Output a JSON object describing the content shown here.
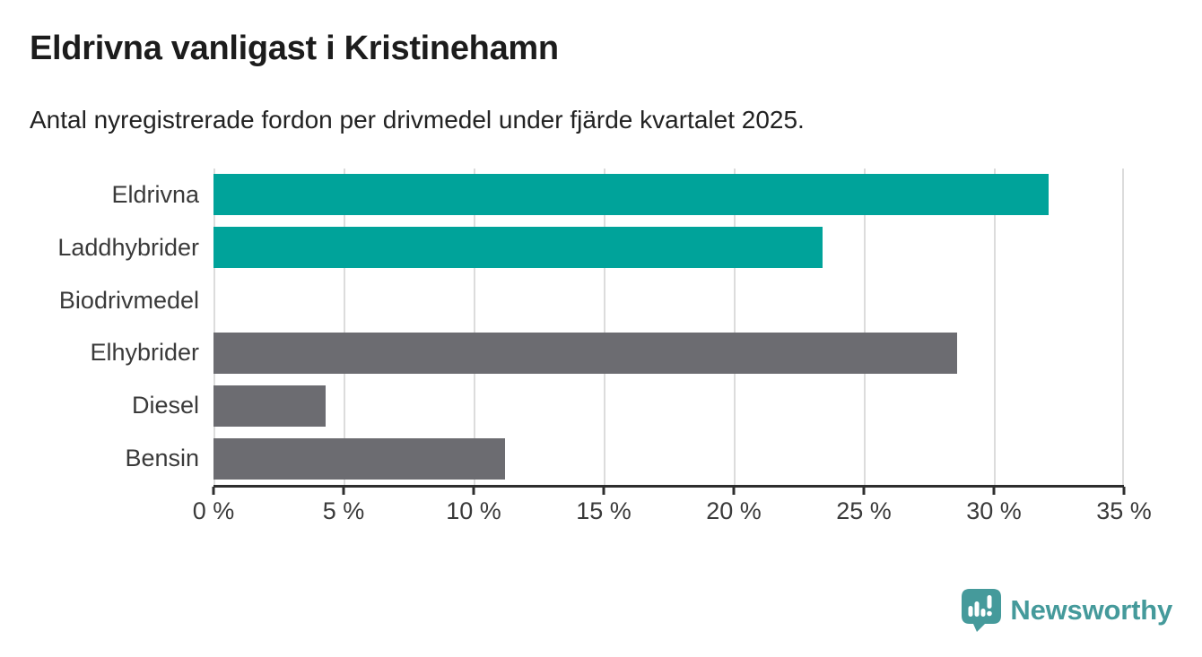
{
  "header": {
    "title": "Eldrivna vanligast i Kristinehamn",
    "subtitle": "Antal nyregistrerade fordon per drivmedel under fjärde kvartalet 2025."
  },
  "chart_data": {
    "type": "bar",
    "orientation": "horizontal",
    "title": "Eldrivna vanligast i Kristinehamn",
    "subtitle": "Antal nyregistrerade fordon per drivmedel under fjärde kvartalet 2025.",
    "categories": [
      "Eldrivna",
      "Laddhybrider",
      "Biodrivmedel",
      "Elhybrider",
      "Diesel",
      "Bensin"
    ],
    "values": [
      32.1,
      23.4,
      0,
      28.6,
      4.3,
      11.2
    ],
    "unit": "%",
    "xlim": [
      0,
      35
    ],
    "x_ticks": [
      0,
      5,
      10,
      15,
      20,
      25,
      30,
      35
    ],
    "x_tick_labels": [
      "0 %",
      "5 %",
      "10 %",
      "15 %",
      "20 %",
      "25 %",
      "30 %",
      "35 %"
    ],
    "grid": "vertical-only",
    "legend": "none",
    "bar_colors": [
      "#00a39a",
      "#00a39a",
      "#6c6c71",
      "#6c6c71",
      "#6c6c71",
      "#6c6c71"
    ],
    "highlight_color": "#00a39a",
    "default_color": "#6c6c71",
    "gridline_color": "#dcdcdc",
    "axis_color": "#2e2e2e"
  },
  "footer": {
    "brand": "Newsworthy",
    "brand_color": "#459a9b",
    "logo_icon": "newsworthy-speech-bubble-bar-chart-icon"
  }
}
